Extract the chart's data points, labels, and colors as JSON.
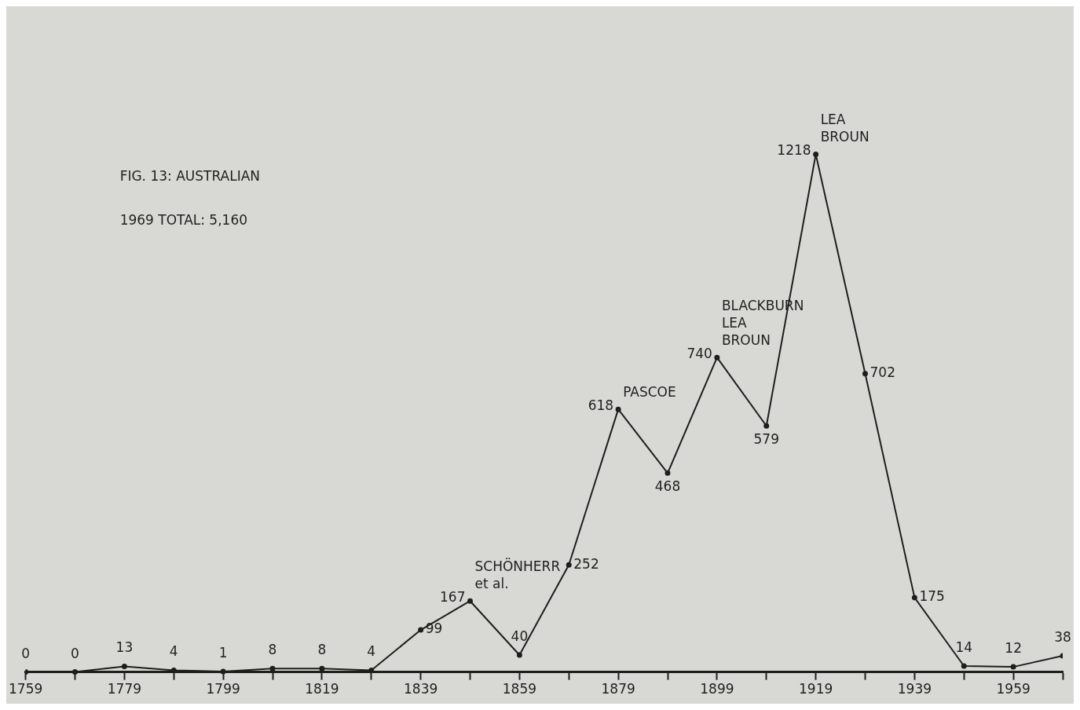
{
  "chart_data": {
    "type": "line",
    "title": "FIG. 13: AUSTRALIAN",
    "subtitle": "1969 TOTAL: 5,160",
    "x": [
      1759,
      1769,
      1779,
      1789,
      1799,
      1809,
      1819,
      1829,
      1839,
      1849,
      1859,
      1869,
      1879,
      1889,
      1899,
      1909,
      1919,
      1929,
      1939,
      1949,
      1959,
      1969
    ],
    "values": [
      0,
      0,
      13,
      4,
      1,
      8,
      8,
      4,
      99,
      167,
      40,
      252,
      618,
      468,
      740,
      579,
      1218,
      702,
      175,
      14,
      12,
      38
    ],
    "color": "#1e1e1e",
    "data_labels": true,
    "marker": "circle",
    "line_style": "solid",
    "grid": false,
    "legend": false,
    "tick_labels": "x",
    "xlim": [
      1759,
      1969
    ],
    "xticks": [
      1759,
      {
        "value": 1769,
        "label": null
      },
      1779,
      {
        "value": 1789,
        "label": null
      },
      1799,
      {
        "value": 1809,
        "label": null
      },
      1819,
      {
        "value": 1829,
        "label": null
      },
      1839,
      {
        "value": 1849,
        "label": null
      },
      1859,
      {
        "value": 1869,
        "label": null
      },
      1879,
      {
        "value": 1889,
        "label": null
      },
      1899,
      {
        "value": 1909,
        "label": null
      },
      1919,
      {
        "value": 1929,
        "label": null
      },
      1939,
      {
        "value": 1949,
        "label": null
      },
      1959,
      {
        "value": 1969,
        "label": null
      }
    ],
    "annotations": [
      {
        "text": "SCHÖNHERR\net al.",
        "x": 1849,
        "y": 167
      },
      {
        "text": "PASCOE",
        "x": 1879,
        "y": 618
      },
      {
        "text": "BLACKBURN\nLEA\nBROUN",
        "x": 1899,
        "y": 740
      },
      {
        "text": "LEA\nBROUN",
        "x": 1919,
        "y": 1218
      }
    ]
  }
}
